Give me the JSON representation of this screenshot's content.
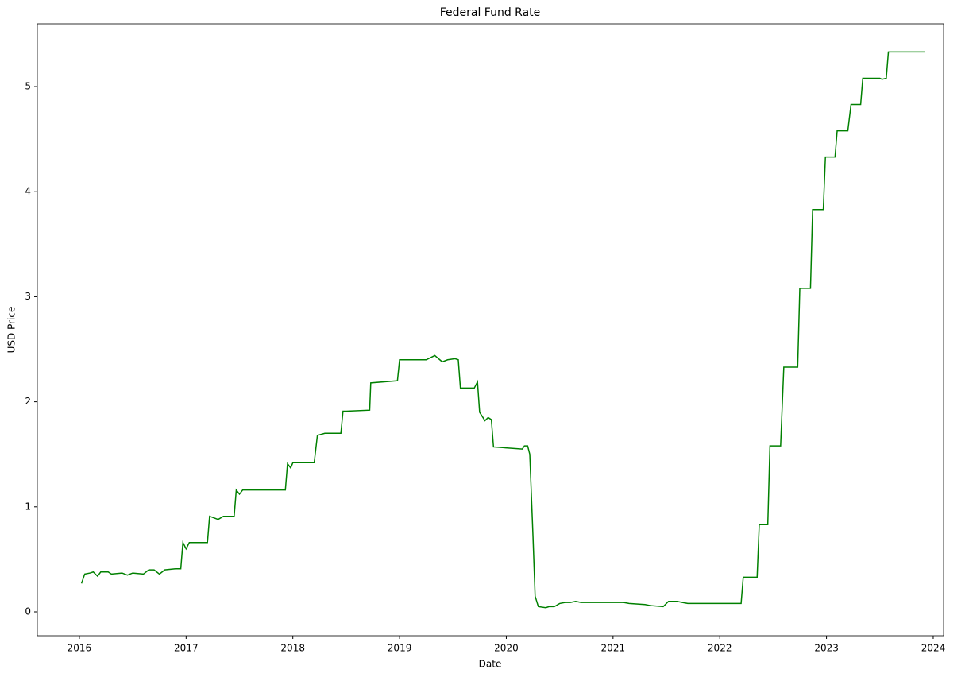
{
  "chart_data": {
    "type": "line",
    "title": "Federal Fund Rate",
    "x_label": "Date",
    "y_label": "USD Price",
    "color": "#008000",
    "x": [
      2016.02,
      2016.05,
      2016.1,
      2016.13,
      2016.17,
      2016.2,
      2016.27,
      2016.3,
      2016.4,
      2016.45,
      2016.5,
      2016.6,
      2016.65,
      2016.7,
      2016.75,
      2016.8,
      2016.9,
      2016.95,
      2016.97,
      2017.0,
      2017.03,
      2017.2,
      2017.22,
      2017.3,
      2017.35,
      2017.45,
      2017.47,
      2017.5,
      2017.53,
      2017.93,
      2017.95,
      2017.98,
      2018.0,
      2018.2,
      2018.23,
      2018.3,
      2018.45,
      2018.47,
      2018.5,
      2018.72,
      2018.73,
      2018.98,
      2019.0,
      2019.25,
      2019.33,
      2019.4,
      2019.45,
      2019.52,
      2019.55,
      2019.57,
      2019.7,
      2019.73,
      2019.75,
      2019.8,
      2019.83,
      2019.86,
      2019.88,
      2020.15,
      2020.17,
      2020.2,
      2020.22,
      2020.25,
      2020.27,
      2020.3,
      2020.37,
      2020.4,
      2020.45,
      2020.5,
      2020.55,
      2020.6,
      2020.65,
      2020.7,
      2020.9,
      2021.0,
      2021.1,
      2021.15,
      2021.3,
      2021.35,
      2021.47,
      2021.52,
      2021.6,
      2021.65,
      2021.7,
      2022.2,
      2022.22,
      2022.35,
      2022.37,
      2022.45,
      2022.47,
      2022.57,
      2022.6,
      2022.73,
      2022.75,
      2022.85,
      2022.87,
      2022.97,
      2022.99,
      2023.08,
      2023.1,
      2023.2,
      2023.23,
      2023.32,
      2023.34,
      2023.5,
      2023.52,
      2023.56,
      2023.58,
      2023.92
    ],
    "values": [
      0.27,
      0.36,
      0.37,
      0.38,
      0.34,
      0.38,
      0.38,
      0.36,
      0.37,
      0.35,
      0.37,
      0.36,
      0.4,
      0.4,
      0.36,
      0.4,
      0.41,
      0.41,
      0.66,
      0.6,
      0.66,
      0.66,
      0.91,
      0.88,
      0.91,
      0.91,
      1.16,
      1.12,
      1.16,
      1.16,
      1.41,
      1.37,
      1.42,
      1.42,
      1.68,
      1.7,
      1.7,
      1.91,
      1.91,
      1.92,
      2.18,
      2.2,
      2.4,
      2.4,
      2.44,
      2.38,
      2.4,
      2.41,
      2.4,
      2.13,
      2.13,
      2.19,
      1.9,
      1.82,
      1.85,
      1.83,
      1.57,
      1.55,
      1.58,
      1.58,
      1.5,
      0.72,
      0.15,
      0.05,
      0.04,
      0.05,
      0.05,
      0.08,
      0.09,
      0.09,
      0.1,
      0.09,
      0.09,
      0.09,
      0.09,
      0.08,
      0.07,
      0.06,
      0.05,
      0.1,
      0.1,
      0.09,
      0.08,
      0.08,
      0.33,
      0.33,
      0.83,
      0.83,
      1.58,
      1.58,
      2.33,
      2.33,
      3.08,
      3.08,
      3.83,
      3.83,
      4.33,
      4.33,
      4.58,
      4.58,
      4.83,
      4.83,
      5.08,
      5.08,
      5.07,
      5.08,
      5.33,
      5.33
    ],
    "xlim": [
      2015.606,
      2024.097
    ],
    "ylim": [
      -0.227,
      5.598
    ],
    "xticks": [
      2016,
      2017,
      2018,
      2019,
      2020,
      2021,
      2022,
      2023,
      2024
    ],
    "yticks": [
      0,
      1,
      2,
      3,
      4,
      5
    ]
  }
}
